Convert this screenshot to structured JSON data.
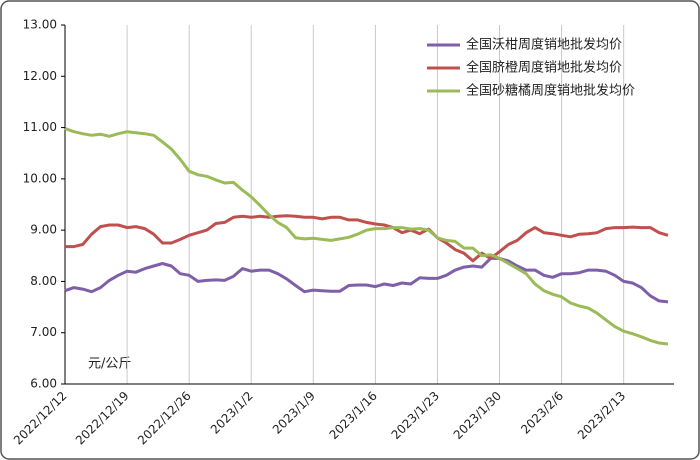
{
  "chart_data": {
    "type": "line",
    "annotation": "元/公斤",
    "categories": [
      "2022/12/12",
      null,
      null,
      null,
      null,
      null,
      null,
      "2022/12/19",
      null,
      null,
      null,
      null,
      null,
      null,
      "2022/12/26",
      null,
      null,
      null,
      null,
      null,
      null,
      "2023/1/2",
      null,
      null,
      null,
      null,
      null,
      null,
      "2023/1/9",
      null,
      null,
      null,
      null,
      null,
      null,
      "2023/1/16",
      null,
      null,
      null,
      null,
      null,
      null,
      "2023/1/23",
      null,
      null,
      null,
      null,
      null,
      null,
      "2023/1/30",
      null,
      null,
      null,
      null,
      null,
      null,
      "2023/2/6",
      null,
      null,
      null,
      null,
      null,
      null,
      "2023/2/13",
      null,
      null,
      null,
      null,
      null
    ],
    "series": [
      {
        "name": "全国沃柑周度销地批发均价",
        "color": "#7f5fa8",
        "values": [
          7.82,
          7.88,
          7.85,
          7.8,
          7.88,
          8.02,
          8.12,
          8.2,
          8.18,
          8.25,
          8.3,
          8.35,
          8.3,
          8.15,
          8.12,
          8.0,
          8.02,
          8.03,
          8.02,
          8.1,
          8.25,
          8.2,
          8.22,
          8.22,
          8.15,
          8.05,
          7.92,
          7.8,
          7.83,
          7.82,
          7.81,
          7.81,
          7.92,
          7.93,
          7.93,
          7.9,
          7.95,
          7.92,
          7.97,
          7.95,
          8.07,
          8.06,
          8.06,
          8.12,
          8.22,
          8.28,
          8.3,
          8.28,
          8.45,
          8.45,
          8.4,
          8.3,
          8.22,
          8.22,
          8.12,
          8.08,
          8.15,
          8.15,
          8.17,
          8.22,
          8.22,
          8.2,
          8.12,
          8.0,
          7.97,
          7.88,
          7.72,
          7.62,
          7.6
        ]
      },
      {
        "name": "全国脐橙周度销地批发均价",
        "color": "#c0504d",
        "values": [
          8.68,
          8.68,
          8.72,
          8.92,
          9.07,
          9.1,
          9.1,
          9.05,
          9.07,
          9.03,
          8.92,
          8.75,
          8.75,
          8.82,
          8.9,
          8.95,
          9.0,
          9.13,
          9.15,
          9.25,
          9.27,
          9.25,
          9.27,
          9.25,
          9.27,
          9.28,
          9.27,
          9.25,
          9.25,
          9.22,
          9.25,
          9.25,
          9.2,
          9.2,
          9.15,
          9.12,
          9.1,
          9.05,
          8.95,
          9.0,
          8.93,
          9.02,
          8.85,
          8.75,
          8.62,
          8.55,
          8.4,
          8.55,
          8.45,
          8.58,
          8.72,
          8.8,
          8.95,
          9.05,
          8.95,
          8.93,
          8.9,
          8.87,
          8.92,
          8.93,
          8.95,
          9.03,
          9.05,
          9.05,
          9.06,
          9.05,
          9.05,
          8.95,
          8.9
        ]
      },
      {
        "name": "全国砂糖橘周度销地批发均价",
        "color": "#9bbb59",
        "values": [
          10.98,
          10.92,
          10.88,
          10.85,
          10.87,
          10.83,
          10.88,
          10.92,
          10.9,
          10.88,
          10.85,
          10.72,
          10.58,
          10.38,
          10.15,
          10.08,
          10.05,
          9.98,
          9.92,
          9.93,
          9.78,
          9.65,
          9.48,
          9.3,
          9.15,
          9.05,
          8.85,
          8.83,
          8.84,
          8.82,
          8.8,
          8.83,
          8.86,
          8.92,
          9.0,
          9.03,
          9.03,
          9.05,
          9.05,
          9.02,
          9.03,
          9.0,
          8.85,
          8.8,
          8.78,
          8.65,
          8.65,
          8.5,
          8.52,
          8.45,
          8.35,
          8.25,
          8.15,
          7.95,
          7.82,
          7.75,
          7.7,
          7.58,
          7.52,
          7.48,
          7.38,
          7.25,
          7.12,
          7.03,
          6.98,
          6.92,
          6.85,
          6.8,
          6.78
        ]
      }
    ],
    "ylim": [
      6,
      13
    ],
    "yticks": [
      {
        "value": 6,
        "label": "6.00"
      },
      {
        "value": 7,
        "label": "7.00"
      },
      {
        "value": 8,
        "label": "8.00"
      },
      {
        "value": 9,
        "label": "9.00"
      },
      {
        "value": 10,
        "label": "10.00"
      },
      {
        "value": 11,
        "label": "11.00"
      },
      {
        "value": 12,
        "label": "12.00"
      },
      {
        "value": 13,
        "label": "13.00"
      }
    ],
    "legend": "top-right"
  }
}
